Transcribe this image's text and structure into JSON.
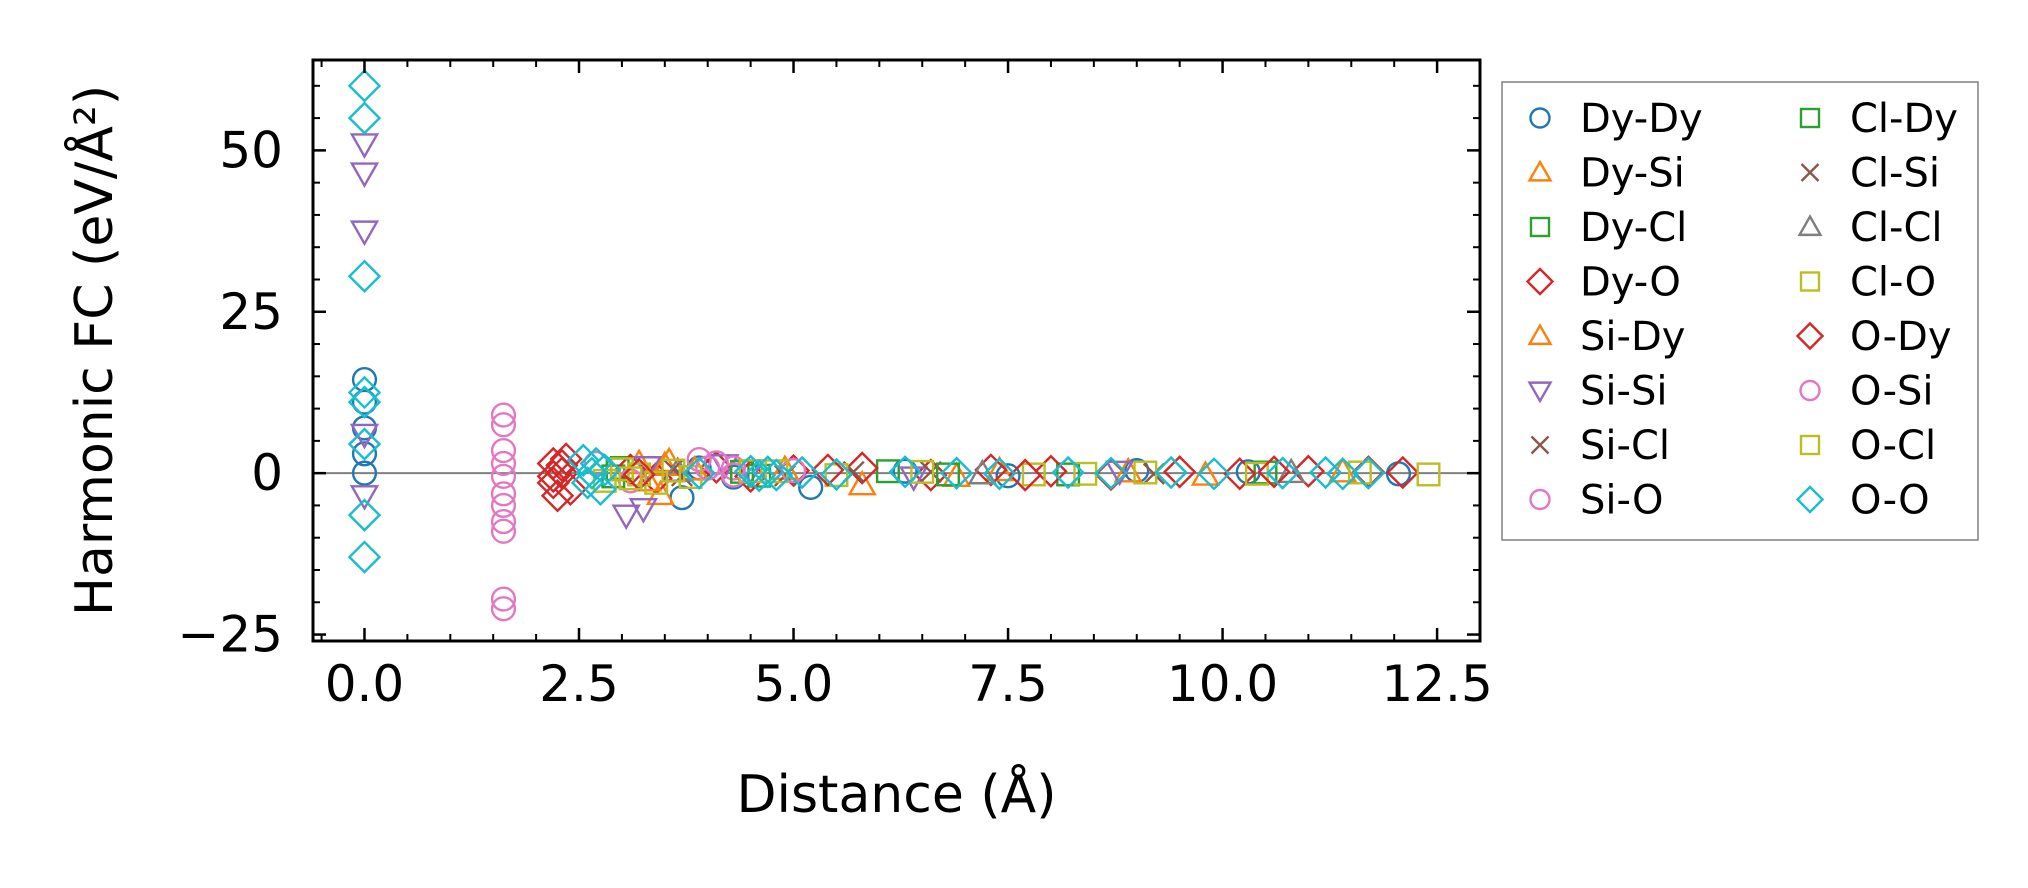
{
  "chart_data": {
    "type": "scatter",
    "title": "",
    "xlabel": "Distance (Å)",
    "ylabel": "Harmonic FC (eV/Å²)",
    "xlim": [
      -0.6,
      13.0
    ],
    "ylim": [
      -26,
      64
    ],
    "xticks": [
      0.0,
      2.5,
      5.0,
      7.5,
      10.0,
      12.5
    ],
    "xtick_labels": [
      "0.0",
      "2.5",
      "5.0",
      "7.5",
      "10.0",
      "12.5"
    ],
    "yticks": [
      -25,
      0,
      25,
      50
    ],
    "ytick_labels": [
      "−25",
      "0",
      "25",
      "50"
    ],
    "zero_line": true,
    "legend_position": "outside-right",
    "legend_columns": 2,
    "series": [
      {
        "name": "Dy-Dy",
        "marker": "circle",
        "color": "#1f77b4",
        "points": [
          [
            0,
            14.5
          ],
          [
            0,
            11
          ],
          [
            0,
            7
          ],
          [
            0,
            3
          ],
          [
            0,
            0
          ],
          [
            3.7,
            -3.8
          ],
          [
            3.9,
            0.8
          ],
          [
            4.3,
            -0.6
          ],
          [
            5.2,
            -2.2
          ],
          [
            6.3,
            0.3
          ],
          [
            7.5,
            -0.4
          ],
          [
            9.0,
            0.4
          ],
          [
            10.3,
            0.2
          ],
          [
            12.05,
            -0.1
          ]
        ]
      },
      {
        "name": "Dy-Si",
        "marker": "triangle-up",
        "color": "#ff7f0e",
        "points": [
          [
            3.2,
            1.5
          ],
          [
            3.45,
            -3.3
          ],
          [
            3.55,
            1.8
          ],
          [
            3.85,
            0.5
          ],
          [
            5.8,
            -1.8
          ],
          [
            7.4,
            0.4
          ],
          [
            9.8,
            -0.3
          ],
          [
            11.4,
            0.2
          ]
        ]
      },
      {
        "name": "Dy-Cl",
        "marker": "square",
        "color": "#2ca02c",
        "points": [
          [
            2.9,
            -0.5
          ],
          [
            3.0,
            0.8
          ],
          [
            4.6,
            -0.4
          ],
          [
            6.1,
            0.3
          ],
          [
            8.2,
            -0.2
          ],
          [
            10.5,
            0.1
          ]
        ]
      },
      {
        "name": "Dy-O",
        "marker": "diamond",
        "color": "#d62728",
        "points": [
          [
            2.2,
            1.5
          ],
          [
            2.2,
            -1.5
          ],
          [
            2.25,
            -3.5
          ],
          [
            2.3,
            0
          ],
          [
            2.35,
            2.2
          ],
          [
            2.4,
            -2.5
          ],
          [
            3.1,
            0.5
          ],
          [
            3.4,
            -0.8
          ],
          [
            4.1,
            0.9
          ],
          [
            4.5,
            -0.5
          ],
          [
            5.0,
            0.4
          ],
          [
            5.8,
            0.8
          ],
          [
            6.6,
            -0.3
          ],
          [
            7.3,
            0.5
          ],
          [
            8.0,
            0.3
          ],
          [
            8.7,
            -0.2
          ],
          [
            9.5,
            0.2
          ],
          [
            10.2,
            -0.1
          ],
          [
            11.0,
            0.3
          ],
          [
            11.7,
            0.2
          ],
          [
            12.1,
            0.1
          ]
        ]
      },
      {
        "name": "Si-Dy",
        "marker": "triangle-up",
        "color": "#ff7f0e",
        "points": [
          [
            3.3,
            -1.2
          ],
          [
            3.5,
            1.2
          ],
          [
            4.9,
            0.6
          ],
          [
            6.9,
            -0.5
          ],
          [
            8.9,
            0.2
          ]
        ]
      },
      {
        "name": "Si-Si",
        "marker": "triangle-down",
        "color": "#9467bd",
        "points": [
          [
            0,
            51
          ],
          [
            0,
            46.5
          ],
          [
            0,
            37.5
          ],
          [
            0,
            6
          ],
          [
            0,
            -3.5
          ],
          [
            3.05,
            -6.5
          ],
          [
            3.25,
            -5.5
          ],
          [
            3.3,
            1
          ],
          [
            4.2,
            1.3
          ],
          [
            4.5,
            0.5
          ],
          [
            6.4,
            -0.6
          ],
          [
            8.8,
            0.3
          ]
        ]
      },
      {
        "name": "Si-Cl",
        "marker": "x",
        "color": "#8c564b",
        "points": [
          [
            3.6,
            0.6
          ],
          [
            4.9,
            -0.4
          ],
          [
            6.6,
            0.2
          ],
          [
            9.2,
            -0.1
          ]
        ]
      },
      {
        "name": "Si-O",
        "marker": "circle",
        "color": "#e377c2",
        "points": [
          [
            1.62,
            9
          ],
          [
            1.62,
            7.5
          ],
          [
            1.62,
            3.5
          ],
          [
            1.62,
            1.5
          ],
          [
            1.62,
            -0.5
          ],
          [
            1.62,
            -3.2
          ],
          [
            1.62,
            -5
          ],
          [
            1.62,
            -7.5
          ],
          [
            1.62,
            -9
          ],
          [
            1.62,
            -19.5
          ],
          [
            1.62,
            -21
          ],
          [
            2.7,
            1.5
          ],
          [
            3.1,
            -1.2
          ],
          [
            3.9,
            2.1
          ],
          [
            4.1,
            1.6
          ],
          [
            4.3,
            0.8
          ]
        ]
      },
      {
        "name": "Cl-Dy",
        "marker": "square",
        "color": "#2ca02c",
        "points": [
          [
            2.95,
            0.6
          ],
          [
            4.4,
            0.2
          ],
          [
            6.8,
            -0.2
          ]
        ]
      },
      {
        "name": "Cl-Si",
        "marker": "x",
        "color": "#8c564b",
        "points": [
          [
            3.7,
            -0.4
          ],
          [
            5.7,
            0.2
          ]
        ]
      },
      {
        "name": "Cl-Cl",
        "marker": "triangle-up",
        "color": "#7f7f7f",
        "points": [
          [
            3.65,
            0.3
          ],
          [
            7.2,
            -0.1
          ],
          [
            10.8,
            0.1
          ]
        ]
      },
      {
        "name": "Cl-O",
        "marker": "square",
        "color": "#bcbd22",
        "points": [
          [
            2.8,
            -1.2
          ],
          [
            3.0,
            0.6
          ],
          [
            3.2,
            -0.2
          ],
          [
            3.4,
            -1.5
          ],
          [
            3.6,
            0.4
          ],
          [
            3.8,
            -0.6
          ],
          [
            4.5,
            0.3
          ],
          [
            5.5,
            -0.3
          ],
          [
            6.5,
            0.2
          ],
          [
            7.8,
            -0.2
          ],
          [
            9.1,
            0.1
          ],
          [
            10.4,
            -0.1
          ],
          [
            11.6,
            0.1
          ],
          [
            12.4,
            -0.2
          ]
        ]
      },
      {
        "name": "O-Dy",
        "marker": "diamond",
        "color": "#d62728",
        "points": [
          [
            2.2,
            -0.5
          ],
          [
            2.3,
            1.2
          ],
          [
            3.2,
            -0.2
          ],
          [
            5.4,
            0.5
          ],
          [
            7.7,
            -0.3
          ],
          [
            10.6,
            0.2
          ]
        ]
      },
      {
        "name": "O-Si",
        "marker": "circle",
        "color": "#e377c2",
        "points": [
          [
            4.0,
            0.8
          ],
          [
            4.3,
            -0.3
          ],
          [
            5.0,
            0.4
          ]
        ]
      },
      {
        "name": "O-Cl",
        "marker": "square",
        "color": "#bcbd22",
        "points": [
          [
            3.1,
            -0.8
          ],
          [
            4.8,
            0.3
          ],
          [
            8.4,
            -0.1
          ]
        ]
      },
      {
        "name": "O-O",
        "marker": "diamond",
        "color": "#17becf",
        "points": [
          [
            0,
            60
          ],
          [
            0,
            55
          ],
          [
            0,
            30.5
          ],
          [
            0,
            12.5
          ],
          [
            0,
            11
          ],
          [
            0,
            4.5
          ],
          [
            0,
            -6.5
          ],
          [
            0,
            -13
          ],
          [
            2.55,
            2
          ],
          [
            2.6,
            -1.5
          ],
          [
            2.65,
            0
          ],
          [
            2.7,
            1.5
          ],
          [
            2.75,
            -2.5
          ],
          [
            2.8,
            0.5
          ],
          [
            3.9,
            0
          ],
          [
            4.5,
            0.3
          ],
          [
            4.6,
            -0.4
          ],
          [
            4.7,
            0.2
          ],
          [
            4.8,
            -0.3
          ],
          [
            5.1,
            0.1
          ],
          [
            5.5,
            -0.2
          ],
          [
            6.3,
            0.2
          ],
          [
            6.9,
            0
          ],
          [
            7.4,
            -0.1
          ],
          [
            8.2,
            0.1
          ],
          [
            8.7,
            0
          ],
          [
            9.4,
            0.1
          ],
          [
            9.9,
            -0.1
          ],
          [
            10.7,
            0
          ],
          [
            11.2,
            0.1
          ],
          [
            11.4,
            -0.1
          ],
          [
            11.7,
            0
          ]
        ]
      }
    ]
  }
}
